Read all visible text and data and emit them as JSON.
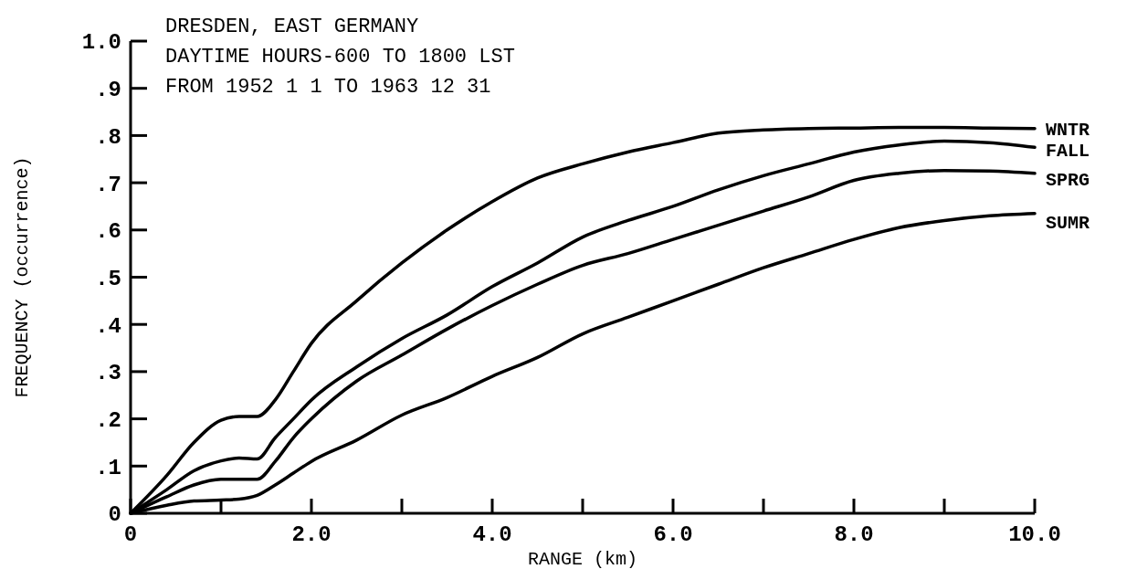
{
  "chart_data": {
    "type": "line",
    "annotations": [
      "DRESDEN, EAST GERMANY",
      "DAYTIME HOURS-600 TO 1800 LST",
      "FROM 1952 1 1 TO 1963 12 31"
    ],
    "xlabel": "RANGE (km)",
    "ylabel": "FREQUENCY (occurrence)",
    "x": [
      0,
      0.4,
      0.7,
      1.0,
      1.2,
      1.4,
      1.6,
      1.8,
      2.0,
      2.5,
      3.0,
      3.5,
      4.0,
      4.5,
      5.0,
      5.5,
      6.0,
      6.5,
      7.0,
      7.5,
      8.0,
      8.5,
      9.0,
      9.5,
      10.0
    ],
    "series": [
      {
        "name": "WNTR",
        "color": "#000000",
        "values": [
          0,
          0.08,
          0.15,
          0.197,
          0.205,
          0.205,
          0.24,
          0.3,
          0.36,
          0.45,
          0.53,
          0.6,
          0.66,
          0.71,
          0.74,
          0.765,
          0.785,
          0.805,
          0.812,
          0.815,
          0.816,
          0.817,
          0.817,
          0.816,
          0.815
        ]
      },
      {
        "name": "FALL",
        "color": "#000000",
        "values": [
          0,
          0.05,
          0.09,
          0.111,
          0.117,
          0.115,
          0.16,
          0.2,
          0.24,
          0.31,
          0.37,
          0.42,
          0.48,
          0.53,
          0.585,
          0.62,
          0.65,
          0.685,
          0.715,
          0.74,
          0.765,
          0.78,
          0.788,
          0.785,
          0.775
        ]
      },
      {
        "name": "SPRG",
        "color": "#000000",
        "values": [
          0,
          0.035,
          0.06,
          0.072,
          0.072,
          0.072,
          0.11,
          0.16,
          0.2,
          0.28,
          0.335,
          0.39,
          0.44,
          0.485,
          0.525,
          0.55,
          0.58,
          0.61,
          0.64,
          0.67,
          0.705,
          0.72,
          0.726,
          0.725,
          0.72
        ]
      },
      {
        "name": "SUMR",
        "color": "#000000",
        "values": [
          0,
          0.017,
          0.026,
          0.028,
          0.03,
          0.038,
          0.06,
          0.085,
          0.11,
          0.155,
          0.208,
          0.245,
          0.29,
          0.33,
          0.38,
          0.415,
          0.45,
          0.485,
          0.52,
          0.55,
          0.58,
          0.605,
          0.62,
          0.63,
          0.635
        ]
      }
    ],
    "xlim": [
      0,
      10
    ],
    "xticks": [
      0,
      {
        "value": 1,
        "label": null
      },
      {
        "value": 2,
        "label": "2.0"
      },
      {
        "value": 3,
        "label": null
      },
      {
        "value": 4,
        "label": "4.0"
      },
      {
        "value": 5,
        "label": null
      },
      {
        "value": 6,
        "label": "6.0"
      },
      {
        "value": 7,
        "label": null
      },
      {
        "value": 8,
        "label": "8.0"
      },
      {
        "value": 9,
        "label": null
      },
      {
        "value": 10,
        "label": "10.0"
      }
    ],
    "ylim": [
      0,
      1
    ],
    "yticks": [
      0,
      {
        "value": 0.1,
        "label": ".1"
      },
      {
        "value": 0.2,
        "label": ".2"
      },
      {
        "value": 0.3,
        "label": ".3"
      },
      {
        "value": 0.4,
        "label": ".4"
      },
      {
        "value": 0.5,
        "label": ".5"
      },
      {
        "value": 0.6,
        "label": ".6"
      },
      {
        "value": 0.7,
        "label": ".7"
      },
      {
        "value": 0.8,
        "label": ".8"
      },
      {
        "value": 0.9,
        "label": ".9"
      },
      {
        "value": 1,
        "label": "1.0"
      }
    ]
  }
}
